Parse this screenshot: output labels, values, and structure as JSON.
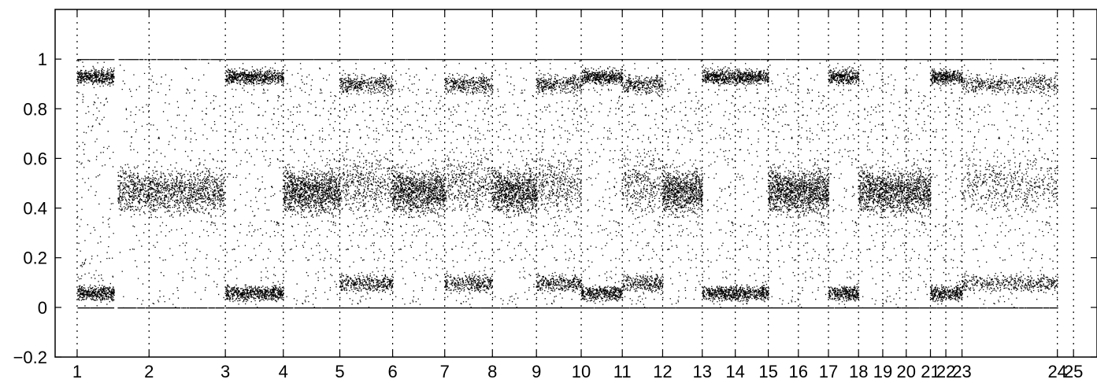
{
  "chart_data": {
    "type": "scatter",
    "title": "",
    "xlabel": "",
    "ylabel": "",
    "ylim": [
      -0.2,
      1.2
    ],
    "yticks": [
      -0.2,
      0,
      0.2,
      0.4,
      0.6,
      0.8,
      1
    ],
    "ytick_labels": [
      "−0.2",
      "0",
      "0.2",
      "0.4",
      "0.6",
      "0.8",
      "1"
    ],
    "grid": "dotted vertical lines at chromosome boundaries",
    "xtick_labels": [
      "1",
      "2",
      "3",
      "4",
      "5",
      "6",
      "7",
      "8",
      "9",
      "10",
      "11",
      "12",
      "13",
      "14",
      "15",
      "16",
      "17",
      "18",
      "19",
      "20",
      "21",
      "22",
      "23",
      "24",
      "25"
    ],
    "xtick_positions": [
      0,
      0.98,
      2.02,
      2.81,
      3.58,
      4.3,
      5.01,
      5.66,
      6.26,
      6.87,
      7.43,
      7.98,
      8.52,
      8.97,
      9.42,
      9.83,
      10.24,
      10.65,
      10.98,
      11.3,
      11.63,
      11.84,
      12.06,
      13.36,
      13.58
    ],
    "xlim": [
      -0.3,
      13.9
    ],
    "segments": [
      {
        "from": 0,
        "to": 0.5,
        "pattern": "bimodal"
      },
      {
        "from": 0.55,
        "to": 2.0,
        "pattern": "het"
      },
      {
        "from": 2.02,
        "to": 2.81,
        "pattern": "bimodal"
      },
      {
        "from": 2.81,
        "to": 3.58,
        "pattern": "het"
      },
      {
        "from": 3.58,
        "to": 4.3,
        "pattern": "mixed"
      },
      {
        "from": 4.3,
        "to": 5.01,
        "pattern": "het"
      },
      {
        "from": 5.01,
        "to": 5.66,
        "pattern": "mixed"
      },
      {
        "from": 5.66,
        "to": 6.26,
        "pattern": "het"
      },
      {
        "from": 6.26,
        "to": 6.87,
        "pattern": "mixed"
      },
      {
        "from": 6.87,
        "to": 7.43,
        "pattern": "bimodal"
      },
      {
        "from": 7.43,
        "to": 7.98,
        "pattern": "mixed"
      },
      {
        "from": 7.98,
        "to": 8.52,
        "pattern": "het"
      },
      {
        "from": 8.52,
        "to": 8.97,
        "pattern": "bimodal"
      },
      {
        "from": 8.97,
        "to": 9.42,
        "pattern": "bimodal"
      },
      {
        "from": 9.42,
        "to": 10.24,
        "pattern": "het"
      },
      {
        "from": 10.24,
        "to": 10.65,
        "pattern": "bimodal"
      },
      {
        "from": 10.65,
        "to": 11.63,
        "pattern": "het"
      },
      {
        "from": 11.63,
        "to": 12.06,
        "pattern": "bimodal"
      },
      {
        "from": 12.06,
        "to": 13.36,
        "pattern": "mixed"
      }
    ],
    "colors": {
      "points": "#000000",
      "axis": "#000000",
      "grid": "#000000",
      "background": "#ffffff"
    }
  }
}
